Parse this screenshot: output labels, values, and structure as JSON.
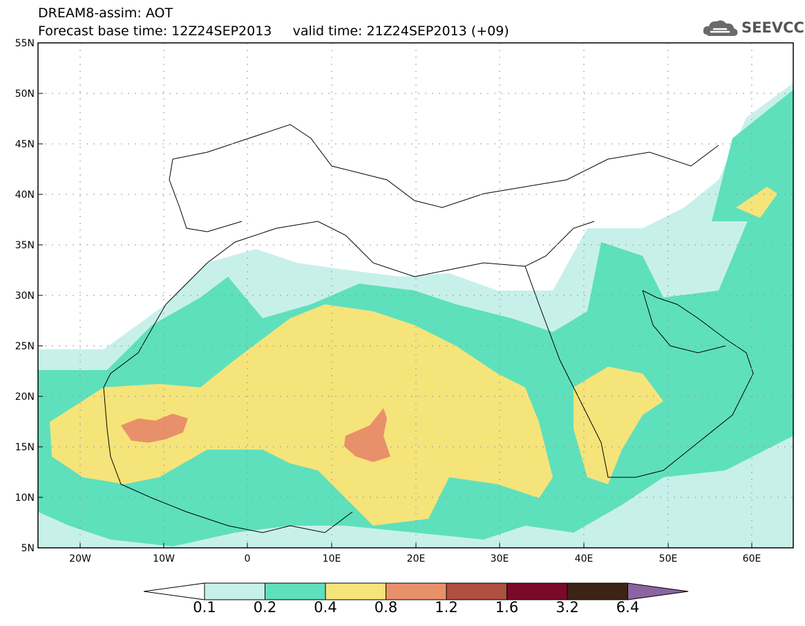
{
  "title": {
    "line1": "DREAM8-assim: AOT",
    "line2": "Forecast base time: 12Z24SEP2013     valid time: 21Z24SEP2013 (+09)"
  },
  "logo": {
    "text": "SEEVCCC",
    "icon": "cloud-icon"
  },
  "map": {
    "lon_range": [
      -25,
      65
    ],
    "lat_range": [
      5,
      55
    ],
    "lat_ticks": [
      "55N",
      "50N",
      "45N",
      "40N",
      "35N",
      "30N",
      "25N",
      "20N",
      "15N",
      "10N",
      "5N"
    ],
    "lon_ticks": [
      "20W",
      "10W",
      "0",
      "10E",
      "20E",
      "30E",
      "40E",
      "50E",
      "60E"
    ],
    "grid": "dotted"
  },
  "legend": {
    "labels": [
      "0.1",
      "0.2",
      "0.4",
      "0.8",
      "1.2",
      "1.6",
      "3.2",
      "6.4"
    ],
    "colors": [
      "#ffffff",
      "#c8f0eb",
      "#5ee0bc",
      "#f5e47a",
      "#e8906a",
      "#b05040",
      "#7a0a28",
      "#3c2414",
      "#8c64a0"
    ]
  }
}
